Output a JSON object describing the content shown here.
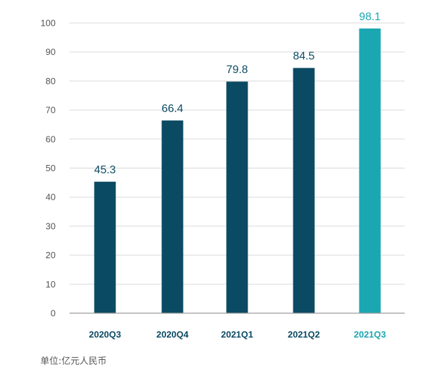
{
  "chart_data": {
    "type": "bar",
    "categories": [
      "2020Q3",
      "2020Q4",
      "2021Q1",
      "2021Q2",
      "2021Q3"
    ],
    "values": [
      45.3,
      66.4,
      79.8,
      84.5,
      98.1
    ],
    "value_labels": [
      "45.3",
      "66.4",
      "79.8",
      "84.5",
      "98.1"
    ],
    "ylim": [
      0,
      100
    ],
    "yticks": [
      0,
      10,
      20,
      30,
      40,
      50,
      60,
      70,
      80,
      90,
      100
    ],
    "grid": true,
    "legend": "none",
    "colors": {
      "default_bar": "#0b4a63",
      "highlight_bar": "#1aa7b2",
      "default_label": "#0b4a63",
      "highlight_label": "#1aa7b2"
    },
    "highlight_index": 4,
    "footnote": "单位:亿元人民币"
  }
}
